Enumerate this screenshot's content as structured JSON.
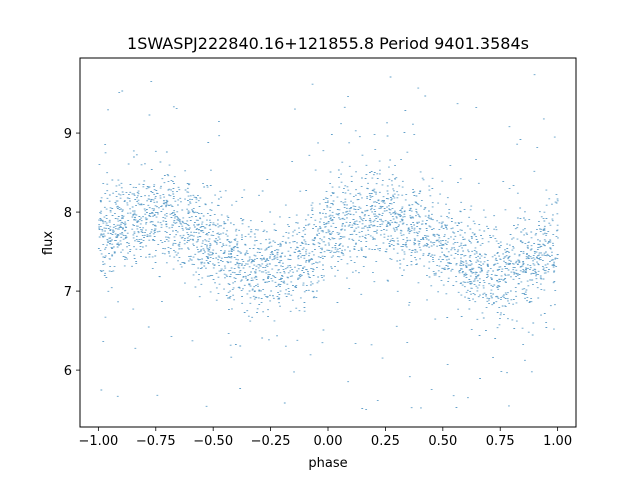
{
  "chart_data": {
    "type": "scatter",
    "title": "1SWASPJ222840.16+121855.8 Period 9401.3584s",
    "xlabel": "phase",
    "ylabel": "flux",
    "xlim": [
      -1.08,
      1.08
    ],
    "ylim": [
      5.28,
      9.95
    ],
    "xticks": [
      -1.0,
      -0.75,
      -0.5,
      -0.25,
      0.0,
      0.25,
      0.5,
      0.75,
      1.0
    ],
    "xtick_labels": [
      "−1.00",
      "−0.75",
      "−0.50",
      "−0.25",
      "0.00",
      "0.25",
      "0.50",
      "0.75",
      "1.00"
    ],
    "yticks": [
      6,
      7,
      8,
      9
    ],
    "ytick_labels": [
      "6",
      "7",
      "8",
      "9"
    ],
    "grid": false,
    "marker_color": "#1f77b4",
    "series": [
      {
        "x_range": [
          -1.0,
          1.0
        ],
        "trend": {
          "phase": [
            -1.0,
            -0.875,
            -0.75,
            -0.625,
            -0.5,
            -0.375,
            -0.25,
            -0.125,
            0.0,
            0.125,
            0.25,
            0.375,
            0.5,
            0.625,
            0.75,
            0.875,
            1.0
          ],
          "flux": [
            7.65,
            7.9,
            7.95,
            7.85,
            7.6,
            7.35,
            7.25,
            7.4,
            7.7,
            7.95,
            8.0,
            7.85,
            7.55,
            7.3,
            7.2,
            7.35,
            7.6
          ]
        },
        "core_spread": 0.28,
        "outlier_range": [
          5.45,
          9.75
        ],
        "approx_point_count": 24000
      }
    ]
  }
}
